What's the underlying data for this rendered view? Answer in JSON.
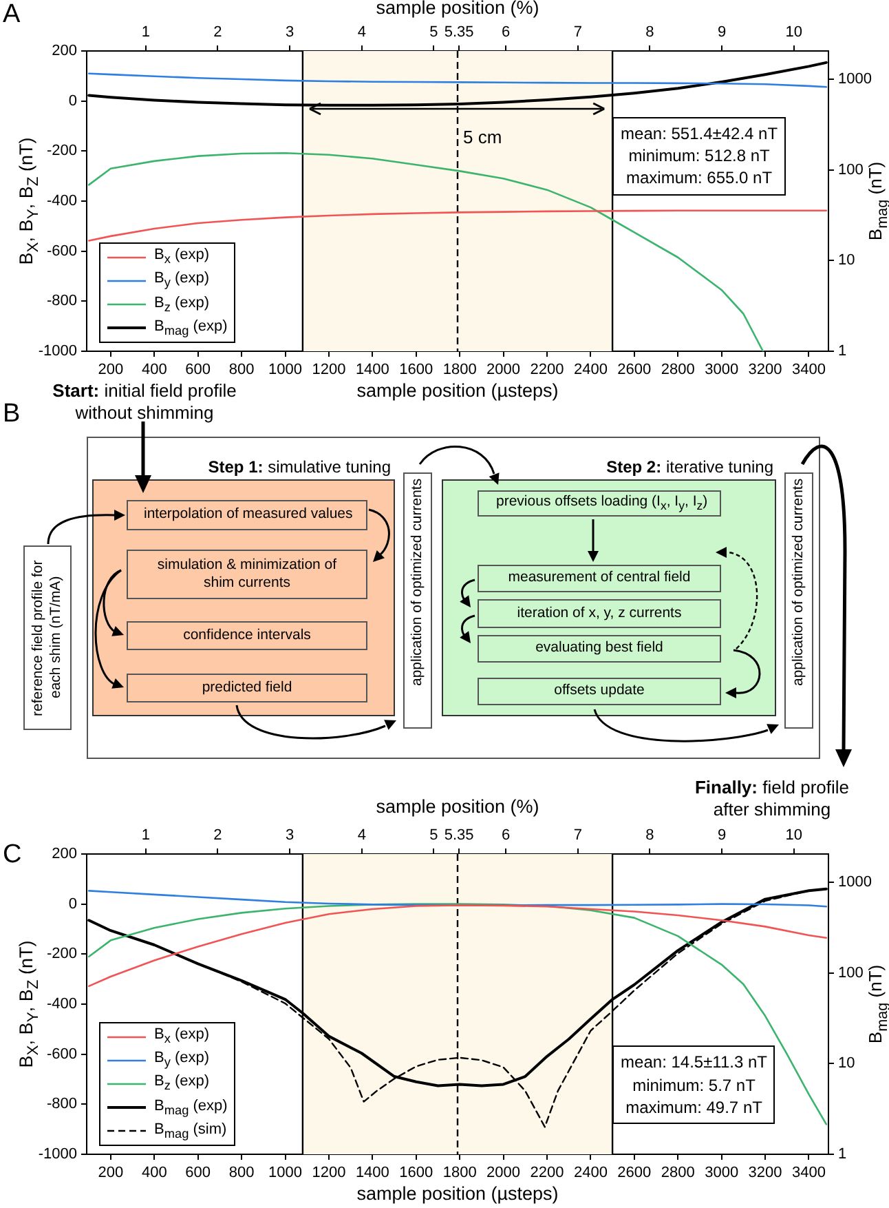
{
  "chart_data": [
    {
      "type": "line",
      "xlabel": "sample position (µsteps)",
      "x2label": "sample position (%)",
      "ylabel": "B$_{X}$, B$_{Y}$, B$_{Z}$ (nT)",
      "y2label": "B$_{mag}$ (nT)",
      "xlim": [
        90,
        3490
      ],
      "xticks": [
        200,
        400,
        600,
        800,
        1000,
        1200,
        1400,
        1600,
        1800,
        2000,
        2200,
        2400,
        2600,
        2800,
        3000,
        3200,
        3400
      ],
      "x2lim": [
        0.18,
        10.48
      ],
      "x2ticks": [
        1,
        2,
        3,
        4,
        5,
        5.35,
        6,
        7,
        8,
        9,
        10
      ],
      "ylim": [
        -1000,
        200
      ],
      "yticks": [
        -1000,
        -800,
        -600,
        -400,
        -200,
        0,
        200
      ],
      "y2lim": [
        1,
        2040
      ],
      "y2ticks": [
        1,
        10,
        100,
        1000
      ],
      "log": "y2",
      "legend": "bottom left",
      "bands": [
        {
          "axis": "x",
          "from": 1080,
          "to": 2500,
          "color": "#fdf8e9"
        }
      ],
      "ref_lines": [
        {
          "axis": "x",
          "value": 1080,
          "color": "#000000"
        },
        {
          "axis": "x",
          "value": 2500,
          "color": "#000000"
        },
        {
          "axis": "x",
          "value": 1790,
          "color": "#000000",
          "line_style": "dashed"
        }
      ],
      "annotations": [
        "A",
        {
          "text": "5 cm",
          "x": 1790,
          "y": -150
        },
        "mean: 551.4±42.4 nT",
        "minimum: 512.8 nT",
        "maximum: 655.0 nT"
      ],
      "series": [
        {
          "name": "B$_{x}$ (exp)",
          "color": "#f05454",
          "x": [
            100,
            200,
            400,
            600,
            800,
            1000,
            1200,
            1400,
            1600,
            1800,
            2000,
            2200,
            2400,
            2600,
            2800,
            3000,
            3200,
            3400,
            3480
          ],
          "values": [
            -558,
            -540,
            -510,
            -488,
            -475,
            -465,
            -458,
            -452,
            -448,
            -445,
            -443,
            -441,
            -440,
            -439,
            -438,
            -438,
            -438,
            -438,
            -438
          ]
        },
        {
          "name": "B$_{y}$ (exp)",
          "color": "#2f7fe0",
          "x": [
            100,
            200,
            400,
            600,
            800,
            1000,
            1200,
            1400,
            1600,
            1800,
            2000,
            2200,
            2400,
            2600,
            2800,
            3000,
            3200,
            3400,
            3480
          ],
          "values": [
            110,
            106,
            99,
            92,
            87,
            82,
            79,
            77,
            76,
            75,
            74,
            73,
            72,
            72,
            71,
            70,
            67,
            60,
            56
          ]
        },
        {
          "name": "B$_{z}$ (exp)",
          "color": "#3cb46e",
          "x": [
            100,
            200,
            400,
            600,
            800,
            1000,
            1200,
            1400,
            1600,
            1800,
            2000,
            2200,
            2400,
            2500,
            2600,
            2800,
            3000,
            3100,
            3190
          ],
          "values": [
            -335,
            -270,
            -240,
            -220,
            -210,
            -208,
            -215,
            -230,
            -255,
            -280,
            -310,
            -355,
            -425,
            -475,
            -525,
            -625,
            -755,
            -850,
            -1000
          ]
        },
        {
          "name": "B$_{mag}$ (exp)",
          "color": "#000000",
          "axis": "y2",
          "x": [
            100,
            200,
            400,
            600,
            800,
            1000,
            1200,
            1400,
            1600,
            1800,
            2000,
            2200,
            2400,
            2600,
            2800,
            3000,
            3200,
            3400,
            3480
          ],
          "values": [
            660,
            630,
            585,
            555,
            535,
            520,
            514,
            514,
            520,
            532,
            555,
            590,
            635,
            700,
            790,
            930,
            1120,
            1380,
            1520
          ]
        }
      ]
    },
    {
      "type": "other",
      "annotations": [
        "B",
        "Start:",
        "initial field profile without shimming",
        "Step 1:",
        "simulative tuning",
        "interpolation of measured values",
        "simulation & minimization of shim currents",
        "confidence intervals",
        "predicted field",
        "reference field profile for each shim (nT/mA)",
        "application of optimized currents",
        "Step 2:",
        "iterative tuning",
        "previous offsets loading (I$_{x}$, I$_{y}$, I$_{z}$)",
        "measurement of central field",
        "iteration of x, y, z currents",
        "evaluating best field",
        "offsets update",
        "application of optimized currents",
        "Finally:",
        "field profile after shimming"
      ]
    },
    {
      "type": "line",
      "xlabel": "sample position (µsteps)",
      "x2label": "sample position (%)",
      "ylabel": "B$_{X}$, B$_{Y}$, B$_{Z}$ (nT)",
      "y2label": "B$_{mag}$ (nT)",
      "xlim": [
        90,
        3490
      ],
      "xticks": [
        200,
        400,
        600,
        800,
        1000,
        1200,
        1400,
        1600,
        1800,
        2000,
        2200,
        2400,
        2600,
        2800,
        3000,
        3200,
        3400
      ],
      "x2lim": [
        0.18,
        10.48
      ],
      "x2ticks": [
        1,
        2,
        3,
        4,
        5,
        5.35,
        6,
        7,
        8,
        9,
        10
      ],
      "ylim": [
        -1000,
        200
      ],
      "yticks": [
        -1000,
        -800,
        -600,
        -400,
        -200,
        0,
        200
      ],
      "y2lim": [
        1,
        2040
      ],
      "y2ticks": [
        1,
        10,
        100,
        1000
      ],
      "log": "y2",
      "legend": "bottom left",
      "bands": [
        {
          "axis": "x",
          "from": 1080,
          "to": 2500,
          "color": "#fdf8e9"
        }
      ],
      "ref_lines": [
        {
          "axis": "x",
          "value": 1080,
          "color": "#000000"
        },
        {
          "axis": "x",
          "value": 2500,
          "color": "#000000"
        },
        {
          "axis": "x",
          "value": 1790,
          "color": "#000000",
          "line_style": "dashed"
        }
      ],
      "annotations": [
        "C",
        "mean: 14.5±11.3 nT",
        "minimum: 5.7 nT",
        "maximum: 49.7 nT"
      ],
      "series": [
        {
          "name": "B$_{x}$ (exp)",
          "color": "#f05454",
          "x": [
            100,
            200,
            400,
            600,
            800,
            1000,
            1200,
            1400,
            1600,
            1800,
            2000,
            2200,
            2400,
            2600,
            2800,
            3000,
            3200,
            3400,
            3480
          ],
          "values": [
            -328,
            -290,
            -225,
            -170,
            -120,
            -75,
            -40,
            -20,
            -8,
            -5,
            -6,
            -10,
            -20,
            -30,
            -45,
            -65,
            -90,
            -125,
            -135
          ]
        },
        {
          "name": "B$_{y}$ (exp)",
          "color": "#2f7fe0",
          "x": [
            100,
            200,
            400,
            600,
            800,
            1000,
            1200,
            1400,
            1600,
            1800,
            2000,
            2200,
            2400,
            2600,
            2800,
            3000,
            3200,
            3400,
            3480
          ],
          "values": [
            53,
            48,
            38,
            28,
            18,
            8,
            2,
            -2,
            -4,
            -5,
            -5,
            -4,
            -4,
            -3,
            -2,
            0,
            -1,
            -5,
            -10
          ]
        },
        {
          "name": "B$_{z}$ (exp)",
          "color": "#3cb46e",
          "x": [
            100,
            200,
            400,
            600,
            800,
            1000,
            1200,
            1400,
            1600,
            1800,
            2000,
            2200,
            2400,
            2600,
            2800,
            3000,
            3100,
            3200,
            3300,
            3400,
            3480
          ],
          "values": [
            -210,
            -145,
            -95,
            -60,
            -35,
            -18,
            -8,
            -2,
            0,
            0,
            -2,
            -8,
            -25,
            -55,
            -128,
            -242,
            -320,
            -447,
            -600,
            -760,
            -880
          ]
        },
        {
          "name": "B$_{mag}$ (exp)",
          "color": "#000000",
          "axis": "y2",
          "x": [
            100,
            200,
            400,
            600,
            800,
            1000,
            1080,
            1200,
            1350,
            1500,
            1600,
            1700,
            1800,
            1900,
            2000,
            2100,
            2200,
            2300,
            2400,
            2500,
            2600,
            2800,
            3000,
            3200,
            3400,
            3480
          ],
          "values": [
            379,
            292,
            203,
            126,
            82,
            51,
            36,
            20,
            13,
            7.2,
            6.3,
            5.7,
            5.9,
            5.7,
            5.9,
            7.2,
            12,
            18.6,
            31,
            51,
            74,
            176,
            362,
            648,
            805,
            840
          ]
        },
        {
          "name": "B$_{mag}$ (sim)",
          "color": "#000000",
          "axis": "y2",
          "line_style": "dashed",
          "x": [
            100,
            200,
            400,
            600,
            800,
            1000,
            1200,
            1300,
            1360,
            1420,
            1500,
            1600,
            1700,
            1800,
            1900,
            2000,
            2100,
            2190,
            2250,
            2400,
            2500,
            2600,
            2800,
            3000,
            3200,
            3400,
            3480
          ],
          "values": [
            379,
            292,
            203,
            126,
            80,
            46,
            18.7,
            9,
            3.8,
            5,
            6.8,
            9.3,
            11,
            11.6,
            10.9,
            9.1,
            5,
            2,
            5,
            23,
            38,
            64,
            164,
            347,
            620,
            805,
            840
          ]
        }
      ]
    }
  ]
}
